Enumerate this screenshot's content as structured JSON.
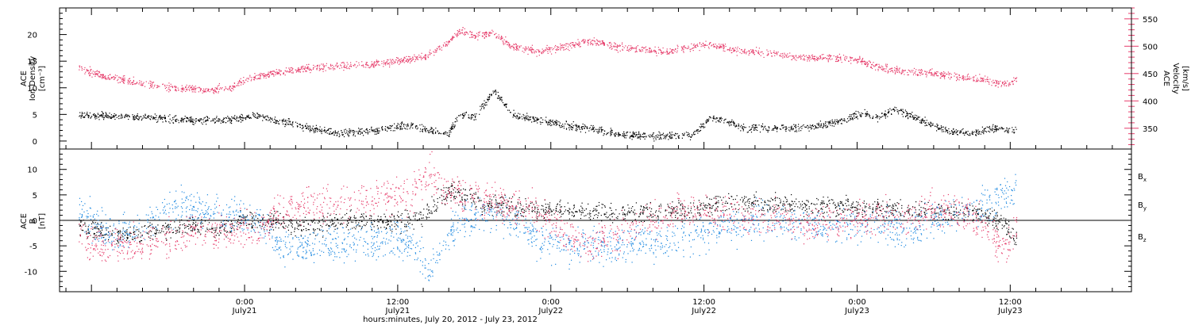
{
  "chart_data": [
    {
      "type": "scatter",
      "panel": "top",
      "left_axis_label": [
        "ACE",
        "Ion Density",
        "[cm⁻³]"
      ],
      "right_axis_label": [
        "ACE",
        "Velocity",
        "[km/s]"
      ],
      "left_ylim": [
        -1.5,
        25
      ],
      "left_yticks": [
        0,
        5,
        10,
        15,
        20
      ],
      "right_ylim": [
        312,
        570
      ],
      "right_yticks": [
        350,
        400,
        450,
        500,
        550
      ],
      "right_axis_color": "#e63d6b",
      "series": [
        {
          "axis": "left",
          "color": "#000000",
          "spread": 0.6,
          "x": [
            -13,
            -8,
            -4,
            -1,
            0.8,
            2,
            3.5,
            5,
            7,
            10,
            13,
            14.5,
            16,
            16.8,
            18,
            19.5,
            21,
            23,
            25,
            27,
            29,
            31,
            33,
            35,
            36.5,
            37.5,
            39,
            41,
            43,
            45,
            47,
            48.5,
            49.5,
            51,
            53,
            55,
            57,
            59,
            60.5
          ],
          "y": [
            5,
            4.5,
            4,
            4,
            5,
            4,
            3.5,
            2.5,
            1.5,
            2,
            3,
            2,
            1.5,
            5,
            4.5,
            9.5,
            5,
            4,
            3,
            2.5,
            1.5,
            1,
            1,
            1,
            4.5,
            4,
            2.5,
            2.5,
            2.5,
            3,
            4,
            5.5,
            4.5,
            6,
            4,
            2,
            1.5,
            2.5,
            2
          ]
        },
        {
          "axis": "right",
          "color": "#e63d6b",
          "spread": 6,
          "x": [
            -13,
            -10,
            -6,
            -3,
            -1,
            0,
            1,
            3,
            5,
            8,
            11,
            14,
            16,
            17,
            18,
            19.5,
            21,
            23,
            25,
            27,
            29,
            31,
            33,
            35,
            36.5,
            38,
            40,
            42,
            44,
            46,
            48,
            50,
            52,
            54,
            56,
            58,
            59.5,
            60.5
          ],
          "y": [
            460,
            440,
            425,
            420,
            425,
            440,
            445,
            455,
            460,
            465,
            470,
            480,
            510,
            530,
            520,
            525,
            500,
            490,
            500,
            510,
            500,
            495,
            490,
            500,
            505,
            495,
            490,
            485,
            480,
            480,
            475,
            460,
            455,
            450,
            445,
            440,
            430,
            440
          ]
        }
      ]
    },
    {
      "type": "scatter",
      "panel": "bottom",
      "left_axis_label": [
        "ACE",
        "B",
        "[nT]"
      ],
      "ylim": [
        -14,
        14
      ],
      "yticks": [
        -10,
        -5,
        0,
        5,
        10
      ],
      "zero_line": true,
      "series": [
        {
          "name": "Bx",
          "color": "#000000",
          "spread": 1.6,
          "x": [
            -13,
            -10,
            -7,
            -4,
            -2,
            0,
            2,
            4,
            6,
            8,
            10,
            12,
            14,
            16,
            17,
            19,
            21,
            23,
            25,
            27,
            29,
            31,
            33,
            35,
            36,
            38,
            40,
            42,
            44,
            46,
            48,
            50,
            52,
            54,
            56,
            58,
            59.5,
            60.5
          ],
          "y": [
            -1,
            -3,
            -2,
            -1,
            -2,
            0,
            0,
            -1,
            -1,
            0,
            0,
            0,
            1,
            6,
            5,
            3,
            3,
            2,
            2,
            2,
            1,
            2,
            2,
            2,
            3,
            3.5,
            3.5,
            3,
            3,
            3,
            2.5,
            2.5,
            2,
            2,
            2,
            1,
            -0.5,
            -4
          ]
        },
        {
          "name": "By",
          "color": "#1a87e0",
          "spread": 3.0,
          "x": [
            -13,
            -11,
            -9,
            -7,
            -5,
            -3,
            -1,
            1,
            3,
            5,
            7,
            9,
            11,
            13,
            14.5,
            15.5,
            17,
            19,
            21,
            23,
            25,
            27,
            29,
            31,
            33,
            35,
            36,
            38,
            40,
            42,
            44,
            46,
            48,
            50,
            52,
            54,
            56,
            58,
            59.5,
            60.5
          ],
          "y": [
            2,
            -2,
            -3,
            0,
            3,
            2,
            1,
            0,
            -5,
            -5,
            -5,
            -4,
            -4,
            -4,
            -10,
            -4,
            0,
            2,
            0,
            -4,
            -5,
            -5,
            -5,
            -4,
            -4,
            -3,
            -2,
            -1,
            0,
            0,
            -0.5,
            -1,
            -1,
            -1,
            -2,
            0,
            2,
            3,
            5,
            6
          ]
        },
        {
          "name": "Bz",
          "color": "#e63d6b",
          "spread": 3.0,
          "x": [
            -13,
            -11,
            -9,
            -7,
            -5,
            -3,
            -1,
            1,
            3,
            5,
            7,
            9,
            11,
            13,
            14.5,
            15.5,
            17,
            19,
            21,
            23,
            25,
            27,
            29,
            31,
            33,
            35,
            36,
            38,
            40,
            42,
            44,
            46,
            48,
            50,
            52,
            54,
            56,
            58,
            59.5,
            60.5
          ],
          "y": [
            -3,
            -5,
            -5,
            -4,
            -3,
            -2,
            -2,
            -2,
            2,
            3,
            3,
            4,
            5,
            5,
            10,
            7,
            5,
            4,
            3,
            1,
            -2,
            -5,
            -3,
            0,
            1,
            2,
            2,
            1,
            0.5,
            0,
            -0.5,
            0,
            0,
            1,
            1,
            2,
            2,
            -1,
            -6,
            -1
          ]
        }
      ]
    }
  ],
  "x_axis": {
    "xlim": [
      -14.5,
      69.5
    ],
    "ticks": [
      {
        "t": 0,
        "time": "0:00",
        "date": "July21"
      },
      {
        "t": 12,
        "time": "12:00",
        "date": "July21"
      },
      {
        "t": 24,
        "time": "0:00",
        "date": "July22"
      },
      {
        "t": 36,
        "time": "12:00",
        "date": "July22"
      },
      {
        "t": 48,
        "time": "0:00",
        "date": "July23"
      },
      {
        "t": 60,
        "time": "12:00",
        "date": "July23"
      }
    ],
    "minor_step_hours": 2,
    "title": "hours:minutes, July 20, 2012 - July 23, 2012"
  },
  "legend": [
    {
      "base": "B",
      "sub": "x",
      "color": "#000000"
    },
    {
      "base": "B",
      "sub": "y",
      "color": "#1a87e0"
    },
    {
      "base": "B",
      "sub": "z",
      "color": "#e63d6b"
    }
  ]
}
